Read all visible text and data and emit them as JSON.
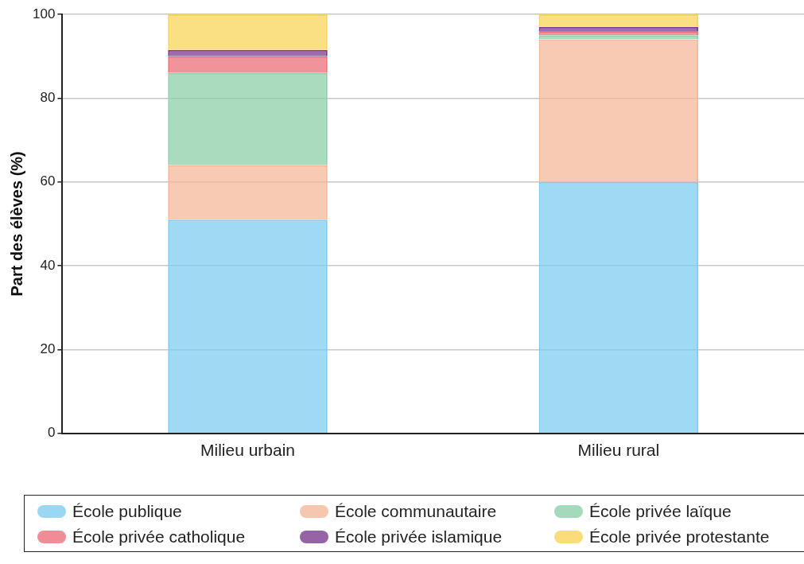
{
  "chart_data": {
    "type": "bar",
    "stacked": true,
    "ylabel": "Part des élèves (%)",
    "categories": [
      "Milieu urbain",
      "Milieu rural"
    ],
    "series": [
      {
        "name": "École publique",
        "color": "#7fcdf0",
        "values": [
          51,
          60
        ]
      },
      {
        "name": "École communautaire",
        "color": "#f5b89a",
        "values": [
          13,
          34
        ]
      },
      {
        "name": "École privée laïque",
        "color": "#8fcfaa",
        "values": [
          22,
          1
        ]
      },
      {
        "name": "École privée catholique",
        "color": "#ec6f7a",
        "values": [
          4,
          1
        ]
      },
      {
        "name": "École privée islamique",
        "color": "#7a3d91",
        "values": [
          1.5,
          1
        ]
      },
      {
        "name": "École privée protestante",
        "color": "#f8d45a",
        "values": [
          8.5,
          3
        ]
      }
    ],
    "ylim": [
      0,
      100
    ],
    "yticks": [
      0,
      20,
      40,
      60,
      80,
      100
    ],
    "grid": "y",
    "legend": "bottom"
  }
}
